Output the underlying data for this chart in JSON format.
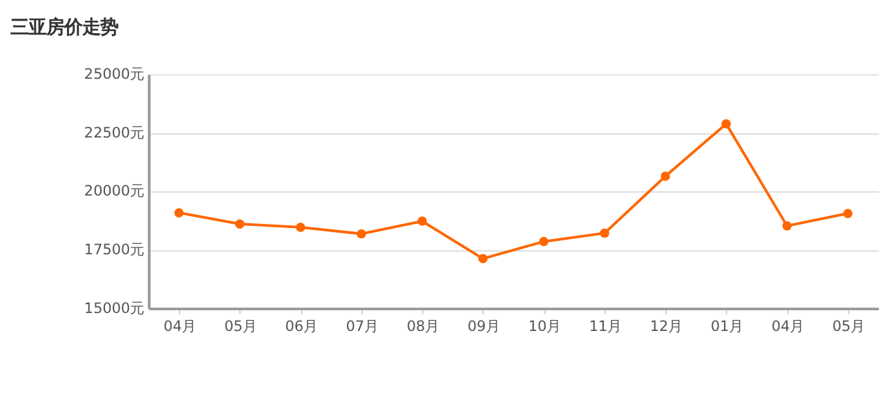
{
  "chart_data": {
    "type": "line",
    "title": "三亚房价走势",
    "categories": [
      "04月",
      "05月",
      "06月",
      "07月",
      "08月",
      "09月",
      "10月",
      "11月",
      "12月",
      "01月",
      "04月",
      "05月"
    ],
    "series": [
      {
        "color": "#ff6600",
        "values": [
          19080,
          18600,
          18460,
          18180,
          18720,
          17120,
          17850,
          18210,
          20640,
          22880,
          18520,
          19050
        ]
      }
    ],
    "ylim": [
      15000,
      25000
    ],
    "yticks": [
      {
        "value": 15000,
        "label": "15000元"
      },
      {
        "value": 17500,
        "label": "17500元"
      },
      {
        "value": 20000,
        "label": "20000元"
      },
      {
        "value": 22500,
        "label": "22500元"
      },
      {
        "value": 25000,
        "label": "25000元"
      }
    ],
    "grid": "y",
    "marker": "circle",
    "line_style": "solid",
    "legend": false
  }
}
